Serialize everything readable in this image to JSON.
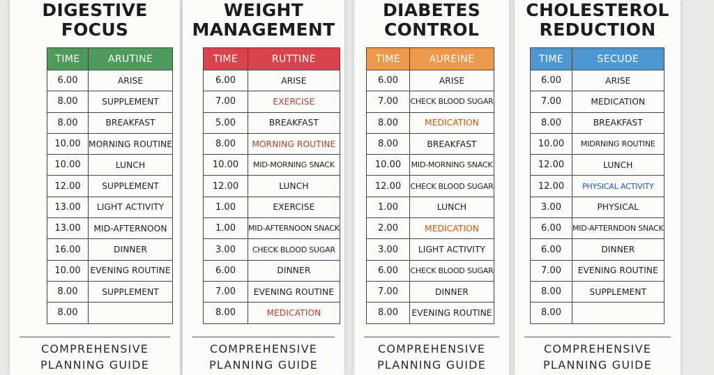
{
  "cards": [
    {
      "title": "DIGESTIVE\nFOCUS",
      "header": {
        "time": "TIME",
        "activity": "ARUTINE"
      },
      "header_color": "#4e9a5c",
      "rows": [
        {
          "time": "6.00",
          "activity": "ARISE"
        },
        {
          "time": "8.00",
          "activity": "SUPPLEMENT"
        },
        {
          "time": "8.00",
          "activity": "BREAKFAST"
        },
        {
          "time": "10.00",
          "activity": "MORNING ROUTINE"
        },
        {
          "time": "10.00",
          "activity": "LUNCH"
        },
        {
          "time": "12.00",
          "activity": "SUPPLEMENT"
        },
        {
          "time": "13.00",
          "activity": "LIGHT ACTIVITY"
        },
        {
          "time": "13.00",
          "activity": "MID-AFTERNOON"
        },
        {
          "time": "16.00",
          "activity": "DINNER"
        },
        {
          "time": "10.00",
          "activity": "EVENING ROUTINE"
        },
        {
          "time": "8.00",
          "activity": "SUPPLEMENT"
        },
        {
          "time": "8.00",
          "activity": ""
        }
      ],
      "footer": "COMPREHENSIVE\nPLANNING GUIDE"
    },
    {
      "title": "WEIGHT\nMANAGEMENT",
      "header": {
        "time": "TIME",
        "activity": "RUTTINE"
      },
      "header_color": "#d9434b",
      "rows": [
        {
          "time": "6.00",
          "activity": "ARISE"
        },
        {
          "time": "7.00",
          "activity": "EXERCISE",
          "color": "#c0392b"
        },
        {
          "time": "5.00",
          "activity": "BREAKFAST"
        },
        {
          "time": "8.00",
          "activity": "MORNING ROUTINE",
          "color": "#c0392b"
        },
        {
          "time": "10.00",
          "activity": "MID-MORNING SNACK"
        },
        {
          "time": "12.00",
          "activity": "LUNCH"
        },
        {
          "time": "1.00",
          "activity": "EXERCISE"
        },
        {
          "time": "1.00",
          "activity": "MID-AFTERNOON SNACK"
        },
        {
          "time": "3.00",
          "activity": "CHECK BLOOD SUGAR"
        },
        {
          "time": "6.00",
          "activity": "DINNER"
        },
        {
          "time": "7.00",
          "activity": "EVENING ROUTINE"
        },
        {
          "time": "8.00",
          "activity": "MEDICATION",
          "color": "#c0392b"
        }
      ],
      "footer": "COMPREHENSIVE\nPLANNING GUIDE"
    },
    {
      "title": "DIABETES\nCONTROL",
      "header": {
        "time": "TIME",
        "activity": "AUREINE"
      },
      "header_color": "#ec9a4a",
      "rows": [
        {
          "time": "6.00",
          "activity": "ARISE"
        },
        {
          "time": "7.00",
          "activity": "CHECK BLOOD SUGAR"
        },
        {
          "time": "8.00",
          "activity": "MEDICATION",
          "color": "#d35400"
        },
        {
          "time": "8.00",
          "activity": "BREAKFAST"
        },
        {
          "time": "10.00",
          "activity": "MID-MORNING SNACK"
        },
        {
          "time": "12.00",
          "activity": "CHECK BLOOD SUGAR"
        },
        {
          "time": "1.00",
          "activity": "LUNCH"
        },
        {
          "time": "2.00",
          "activity": "MEDICATION",
          "color": "#d35400"
        },
        {
          "time": "3.00",
          "activity": "LIGHT ACTIVITY"
        },
        {
          "time": "6.00",
          "activity": "CHECK BLOOD SUGAR"
        },
        {
          "time": "7.00",
          "activity": "DINNER"
        },
        {
          "time": "8.00",
          "activity": "EVENING ROUTINE"
        }
      ],
      "footer": "COMPREHENSIVE\nPLANNING GUIDE"
    },
    {
      "title": "CHOLESTEROL\nREDUCTION",
      "header": {
        "time": "TIME",
        "activity": "SECUDE"
      },
      "header_color": "#4d98d2",
      "rows": [
        {
          "time": "6.00",
          "activity": "ARISE"
        },
        {
          "time": "7.00",
          "activity": "MEDICATION"
        },
        {
          "time": "8.00",
          "activity": "BREAKFAST"
        },
        {
          "time": "10.00",
          "activity": "MIDRNING ROUTINE"
        },
        {
          "time": "12.00",
          "activity": "LUNCH"
        },
        {
          "time": "12.00",
          "activity": "PHYSICAL ACTIVITY",
          "color": "#2255a4"
        },
        {
          "time": "3.00",
          "activity": "PHYSICAL"
        },
        {
          "time": "6.00",
          "activity": "MID-AFTERNDON SNACK"
        },
        {
          "time": "6.00",
          "activity": "DINNER"
        },
        {
          "time": "7.00",
          "activity": "EVENING ROUTINE"
        },
        {
          "time": "8.00",
          "activity": "SUPPLEMENT"
        },
        {
          "time": "8.00",
          "activity": ""
        }
      ],
      "footer": "COMPREHENSIVE\nPLANNING GUIDE"
    }
  ]
}
